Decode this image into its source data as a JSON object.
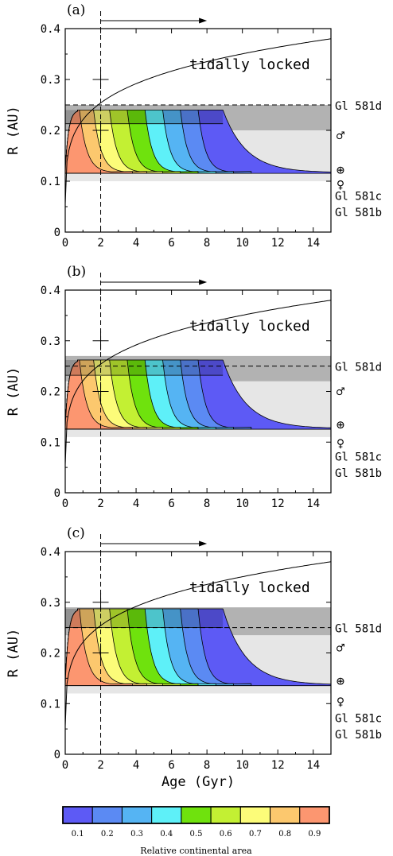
{
  "chart_data": {
    "type": "area",
    "panels": [
      {
        "panel_label": "(a)",
        "xlim": [
          0,
          15
        ],
        "ylim": [
          0,
          0.4
        ],
        "x_ticks": [
          0,
          2,
          4,
          6,
          8,
          10,
          12,
          14
        ],
        "y_ticks": [
          0,
          0.1,
          0.2,
          0.3,
          0.4
        ],
        "y_tick_labels": [
          "0",
          "0.1",
          "0.2",
          "0.3",
          "0.4"
        ],
        "ylabel": "R (AU)",
        "xlabel": "",
        "hz_outer_upper": 0.24,
        "hz_outer_lower": 0.213,
        "hz_inner": 0.117,
        "tidal_lock_label": "tidally locked",
        "tidal_lock_radius_at_15gyr": 0.38,
        "dashed_vertical_age": 2,
        "arrow_x_from": 2,
        "arrow_x_to": 8,
        "cross_points": [
          {
            "x": 2,
            "y": 0.3
          },
          {
            "x": 2,
            "y": 0.2
          }
        ],
        "band_dark": [
          0.2,
          0.25
        ],
        "band_light": [
          0.1,
          0.2
        ],
        "right_markers": [
          {
            "label": "Gl 581d",
            "value": 0.25,
            "line": "dashed"
          },
          {
            "label": "♂",
            "value": 0.19
          },
          {
            "label": "⊕",
            "value": 0.123
          },
          {
            "label": "♀",
            "value": 0.094
          },
          {
            "label": "Gl 581c",
            "value": 0.073
          },
          {
            "label": "Gl 581b",
            "value": 0.041
          }
        ]
      },
      {
        "panel_label": "(b)",
        "xlim": [
          0,
          15
        ],
        "ylim": [
          0,
          0.4
        ],
        "x_ticks": [
          0,
          2,
          4,
          6,
          8,
          10,
          12,
          14
        ],
        "y_ticks": [
          0,
          0.1,
          0.2,
          0.3,
          0.4
        ],
        "y_tick_labels": [
          "0",
          "0.1",
          "0.2",
          "0.3",
          "0.4"
        ],
        "ylabel": "R (AU)",
        "xlabel": "",
        "hz_outer_upper": 0.262,
        "hz_outer_lower": 0.232,
        "hz_inner": 0.127,
        "tidal_lock_label": "tidally locked",
        "tidal_lock_radius_at_15gyr": 0.38,
        "dashed_vertical_age": 2,
        "arrow_x_from": 2,
        "arrow_x_to": 8,
        "cross_points": [
          {
            "x": 2,
            "y": 0.3
          },
          {
            "x": 2,
            "y": 0.2
          }
        ],
        "band_dark": [
          0.22,
          0.27
        ],
        "band_light": [
          0.11,
          0.22
        ],
        "right_markers": [
          {
            "label": "Gl 581d",
            "value": 0.25,
            "line": "dashed"
          },
          {
            "label": "♂",
            "value": 0.2
          },
          {
            "label": "⊕",
            "value": 0.135
          },
          {
            "label": "♀",
            "value": 0.098
          },
          {
            "label": "Gl 581c",
            "value": 0.073
          },
          {
            "label": "Gl 581b",
            "value": 0.041
          }
        ]
      },
      {
        "panel_label": "(c)",
        "xlim": [
          0,
          15
        ],
        "ylim": [
          0,
          0.4
        ],
        "x_ticks": [
          0,
          2,
          4,
          6,
          8,
          10,
          12,
          14
        ],
        "y_ticks": [
          0,
          0.1,
          0.2,
          0.3,
          0.4
        ],
        "y_tick_labels": [
          "0",
          "0.1",
          "0.2",
          "0.3",
          "0.4"
        ],
        "ylabel": "R (AU)",
        "xlabel": "Age (Gyr)",
        "hz_outer_upper": 0.287,
        "hz_outer_lower": 0.25,
        "hz_inner": 0.137,
        "tidal_lock_label": "tidally locked",
        "tidal_lock_radius_at_15gyr": 0.38,
        "dashed_vertical_age": 2,
        "arrow_x_from": 2,
        "arrow_x_to": 8,
        "cross_points": [
          {
            "x": 2,
            "y": 0.3
          },
          {
            "x": 2,
            "y": 0.2
          }
        ],
        "band_dark": [
          0.235,
          0.29
        ],
        "band_light": [
          0.12,
          0.235
        ],
        "right_markers": [
          {
            "label": "Gl 581d",
            "value": 0.25,
            "line": "dashed"
          },
          {
            "label": "♂",
            "value": 0.21
          },
          {
            "label": "⊕",
            "value": 0.145
          },
          {
            "label": "♀",
            "value": 0.104
          },
          {
            "label": "Gl 581c",
            "value": 0.073
          },
          {
            "label": "Gl 581b",
            "value": 0.041
          }
        ]
      }
    ],
    "colorbar": {
      "label": "Relative continental area",
      "ticks": [
        "0.1",
        "0.2",
        "0.3",
        "0.4",
        "0.5",
        "0.6",
        "0.7",
        "0.8",
        "0.9"
      ],
      "colors": [
        "#5d5af5",
        "#5b8af3",
        "#55b4f3",
        "#5ef0f8",
        "#6fe20d",
        "#c3f033",
        "#fcfc79",
        "#fcc86e",
        "#fc9670"
      ],
      "contour_end_ages": [
        8.9,
        7.5,
        6.5,
        5.5,
        4.5,
        3.5,
        2.5,
        1.6,
        0.8
      ]
    },
    "colors": {
      "band_dark": "#b2b2b2",
      "band_light": "#e6e6e6"
    }
  }
}
